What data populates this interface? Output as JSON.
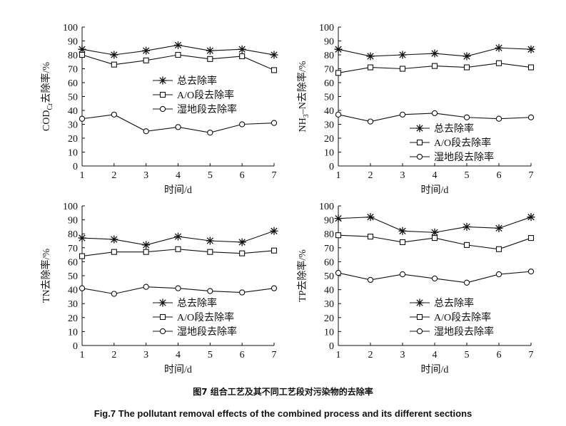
{
  "caption": {
    "zh": "图7   组合工艺及其不同工艺段对污染物的去除率",
    "en": "Fig.7   The pollutant removal effects of the combined process and its different sections"
  },
  "chart_data": [
    {
      "type": "line",
      "ylabel_prefix": "COD",
      "ylabel_sub": "Cr",
      "ylabel_suffix": "去除率/%",
      "xlabel": "时间/d",
      "x": [
        1,
        2,
        3,
        4,
        5,
        6,
        7
      ],
      "ylim": [
        0,
        100
      ],
      "yticks": [
        0,
        10,
        20,
        30,
        40,
        50,
        60,
        70,
        80,
        90,
        100
      ],
      "legend_position": "middle-center",
      "series": [
        {
          "name": "总去除率",
          "marker": "asterisk",
          "values": [
            84,
            80,
            83,
            87,
            83,
            84,
            80
          ]
        },
        {
          "name": "A/O段去除率",
          "marker": "square",
          "values": [
            80,
            73,
            76,
            80,
            77,
            79,
            69
          ]
        },
        {
          "name": "湿地段去除率",
          "marker": "circle",
          "values": [
            34,
            37,
            25,
            28,
            24,
            30,
            31
          ]
        }
      ]
    },
    {
      "type": "line",
      "ylabel_prefix": "NH",
      "ylabel_sub": "3",
      "ylabel_suffix": "–N去除率/%",
      "xlabel": "时间/d",
      "x": [
        1,
        2,
        3,
        4,
        5,
        6,
        7
      ],
      "ylim": [
        0,
        100
      ],
      "yticks": [
        0,
        10,
        20,
        30,
        40,
        50,
        60,
        70,
        80,
        90,
        100
      ],
      "legend_position": "bottom-right",
      "series": [
        {
          "name": "总去除率",
          "marker": "asterisk",
          "values": [
            84,
            79,
            80,
            81,
            79,
            85,
            84
          ]
        },
        {
          "name": "A/O段去除率",
          "marker": "square",
          "values": [
            67,
            71,
            70,
            72,
            71,
            74,
            71
          ]
        },
        {
          "name": "湿地段去除率",
          "marker": "circle",
          "values": [
            37,
            32,
            37,
            38,
            35,
            34,
            35
          ]
        }
      ]
    },
    {
      "type": "line",
      "ylabel_prefix": "TN去除率/%",
      "ylabel_sub": "",
      "ylabel_suffix": "",
      "xlabel": "时间/d",
      "x": [
        1,
        2,
        3,
        4,
        5,
        6,
        7
      ],
      "ylim": [
        0,
        100
      ],
      "yticks": [
        0,
        10,
        20,
        30,
        40,
        50,
        60,
        70,
        80,
        90,
        100
      ],
      "legend_position": "bottom-center",
      "series": [
        {
          "name": "总去除率",
          "marker": "asterisk",
          "values": [
            77,
            76,
            72,
            78,
            75,
            74,
            82
          ]
        },
        {
          "name": "A/O段去除率",
          "marker": "square",
          "values": [
            64,
            67,
            67,
            69,
            67,
            66,
            68
          ]
        },
        {
          "name": "湿地段去除率",
          "marker": "circle",
          "values": [
            41,
            37,
            42,
            41,
            39,
            38,
            41
          ]
        }
      ]
    },
    {
      "type": "line",
      "ylabel_prefix": "TP去除率/%",
      "ylabel_sub": "",
      "ylabel_suffix": "",
      "xlabel": "时间/d",
      "x": [
        1,
        2,
        3,
        4,
        5,
        6,
        7
      ],
      "ylim": [
        0,
        100
      ],
      "yticks": [
        0,
        10,
        20,
        30,
        40,
        50,
        60,
        70,
        80,
        90,
        100
      ],
      "legend_position": "bottom-right",
      "series": [
        {
          "name": "总去除率",
          "marker": "asterisk",
          "values": [
            91,
            92,
            82,
            81,
            85,
            84,
            92
          ]
        },
        {
          "name": "A/O段去除率",
          "marker": "square",
          "values": [
            79,
            78,
            74,
            77,
            72,
            69,
            77
          ]
        },
        {
          "name": "湿地段去除率",
          "marker": "circle",
          "values": [
            52,
            47,
            51,
            48,
            45,
            51,
            53
          ]
        }
      ]
    }
  ]
}
